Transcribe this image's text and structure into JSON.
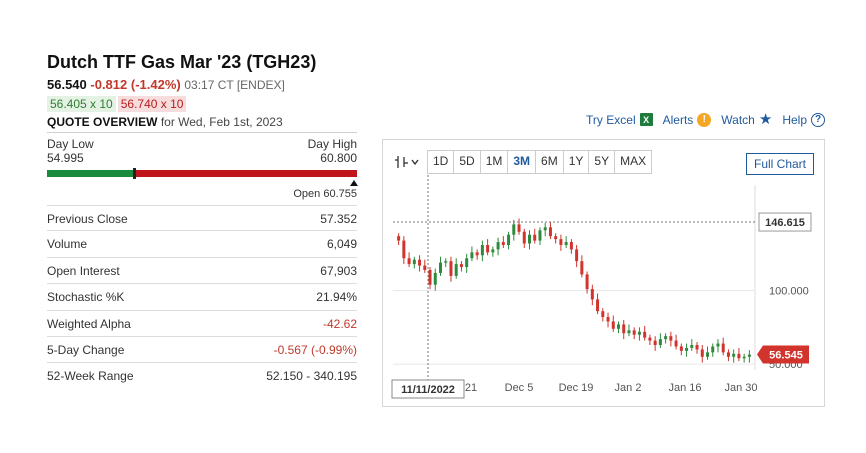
{
  "header": {
    "title": "Dutch TTF Gas Mar '23 (TGH23)",
    "last": "56.540",
    "change": "-0.812 (-1.42%)",
    "time_exchange": "03:17 CT [ENDEX]",
    "bid": "56.405 x 10",
    "ask": "56.740 x 10",
    "quote_overview_label": "QUOTE OVERVIEW",
    "quote_overview_date": "for Wed, Feb 1st, 2023"
  },
  "links": {
    "excel": "Try Excel",
    "alerts": "Alerts",
    "watch": "Watch",
    "help": "Help"
  },
  "range": {
    "low_label": "Day Low",
    "low_value": "54.995",
    "high_label": "Day High",
    "high_value": "60.800",
    "open_label": "Open 60.755",
    "last_pct": 0.28,
    "open_pct": 0.99
  },
  "stats": [
    {
      "label": "Previous Close",
      "value": "57.352",
      "negative": false
    },
    {
      "label": "Volume",
      "value": "6,049",
      "negative": false
    },
    {
      "label": "Open Interest",
      "value": "67,903",
      "negative": false
    },
    {
      "label": "Stochastic %K",
      "value": "21.94%",
      "negative": false
    },
    {
      "label": "Weighted Alpha",
      "value": "-42.62",
      "negative": true
    },
    {
      "label": "5-Day Change",
      "value": "-0.567 (-0.99%)",
      "negative": true
    },
    {
      "label": "52-Week Range",
      "value": "52.150 - 340.195",
      "negative": false
    }
  ],
  "chart_toolbar": {
    "periods": [
      "1D",
      "5D",
      "1M",
      "3M",
      "6M",
      "1Y",
      "5Y",
      "MAX"
    ],
    "active": "3M",
    "full_chart": "Full Chart"
  },
  "chart_data": {
    "type": "candlestick",
    "x_labels": [
      "21",
      "Dec 5",
      "Dec 19",
      "Jan 2",
      "Jan 16",
      "Jan 30"
    ],
    "y_labels": [
      "100.000",
      "50.000"
    ],
    "crosshair_value": "146.615",
    "crosshair_date": "11/11/2022",
    "last_value": "56.545",
    "ylim": [
      46,
      165
    ],
    "colors": {
      "up": "#2e8b3d",
      "down": "#d0342c"
    },
    "closes": [
      134,
      122,
      118,
      121,
      117,
      114,
      104,
      112,
      119,
      120,
      110,
      118,
      116,
      122,
      126,
      124,
      131,
      126,
      128,
      133,
      131,
      138,
      145,
      140,
      132,
      138,
      134,
      141,
      143,
      137,
      135,
      131,
      133,
      128,
      120,
      111,
      101,
      94,
      86,
      82,
      79,
      74,
      77,
      71,
      73,
      70,
      72,
      68,
      66,
      63,
      67,
      69,
      66,
      62,
      59,
      61,
      63,
      60,
      55,
      58,
      62,
      64,
      58,
      55,
      57,
      54,
      55,
      56.5
    ]
  }
}
